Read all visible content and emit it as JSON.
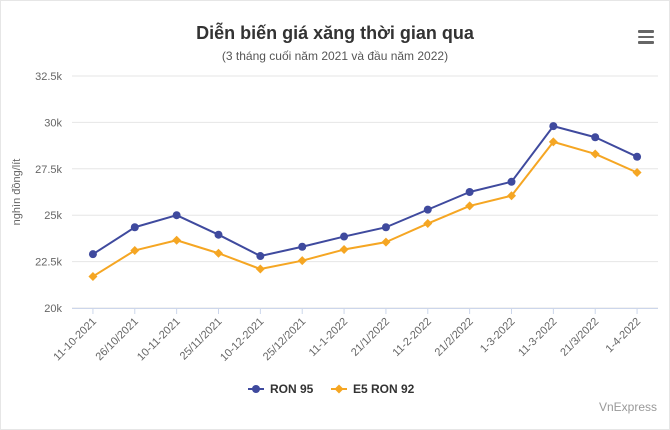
{
  "chart_data": {
    "type": "line",
    "title": "Diễn biến giá xăng thời gian qua",
    "subtitle": "(3 tháng cuối năm 2021 và đầu năm 2022)",
    "ylabel": "nghìn đồng/lít",
    "xlabel": "",
    "categories": [
      "11-10-2021",
      "26/10/2021",
      "10-11-2021",
      "25/11/2021",
      "10-12-2021",
      "25/12/2021",
      "11-1-2022",
      "21/1/2022",
      "11-2-2022",
      "21/2/2022",
      "1-3-2022",
      "11-3-2022",
      "21/3/2022",
      "1-4-2022"
    ],
    "ylim": [
      20000,
      32500
    ],
    "yticks": [
      20000,
      22500,
      25000,
      27500,
      30000,
      32500
    ],
    "ytick_labels": [
      "20k",
      "22.5k",
      "25k",
      "27.5k",
      "30k",
      "32.5k"
    ],
    "grid": true,
    "legend_position": "bottom",
    "series": [
      {
        "name": "RON 95",
        "color": "#3f4a9e",
        "values": [
          22900,
          24350,
          25000,
          23950,
          22800,
          23300,
          23850,
          24350,
          25300,
          26250,
          26800,
          29800,
          29200,
          28150
        ]
      },
      {
        "name": "E5 RON 92",
        "color": "#f5a623",
        "values": [
          21700,
          23100,
          23650,
          22950,
          22100,
          22550,
          23150,
          23550,
          24550,
          25500,
          26050,
          28950,
          28300,
          27300
        ]
      }
    ]
  },
  "menu_icon": "hamburger-menu-icon",
  "credit": "VnExpress"
}
